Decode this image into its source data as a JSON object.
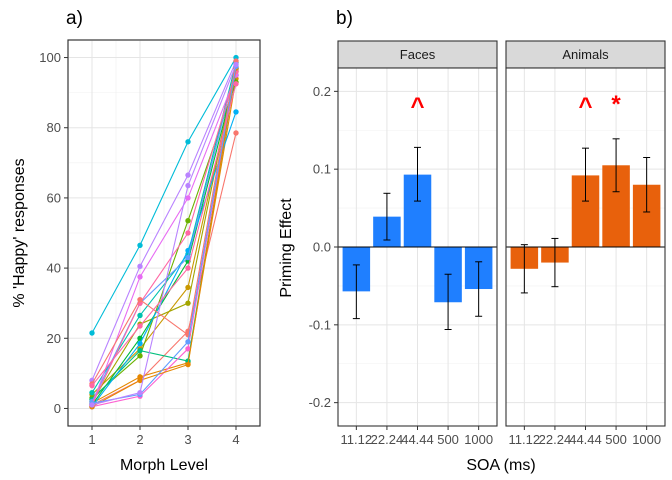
{
  "chart_data": [
    {
      "panel_tag": "a)",
      "type": "line",
      "xlabel": "Morph Level",
      "ylabel": "% 'Happy' responses",
      "x": [
        1,
        2,
        3,
        4
      ],
      "x_ticks": [
        "1",
        "2",
        "3",
        "4"
      ],
      "y_ticks": [
        "0",
        "20",
        "40",
        "60",
        "80",
        "100"
      ],
      "xlim": [
        0.5,
        4.5
      ],
      "ylim": [
        -5,
        105
      ],
      "grid": true,
      "legend": "none",
      "series": [
        {
          "color": "#F8766D",
          "values": [
            1,
            8,
            22,
            78.5
          ]
        },
        {
          "color": "#E58700",
          "values": [
            1.5,
            9,
            13,
            94
          ]
        },
        {
          "color": "#C99800",
          "values": [
            4,
            17,
            34.5,
            96
          ]
        },
        {
          "color": "#A3A500",
          "values": [
            2,
            24,
            30,
            97
          ]
        },
        {
          "color": "#6BB100",
          "values": [
            3,
            15,
            53.5,
            93
          ]
        },
        {
          "color": "#00BA38",
          "values": [
            1,
            20,
            42,
            95
          ]
        },
        {
          "color": "#00BF7D",
          "values": [
            2.5,
            16.5,
            13.5,
            96.5
          ]
        },
        {
          "color": "#00C0AF",
          "values": [
            4.5,
            26.5,
            44,
            98.5
          ]
        },
        {
          "color": "#00BCD8",
          "values": [
            21.5,
            46.5,
            76,
            100
          ]
        },
        {
          "color": "#00B0F6",
          "values": [
            0.5,
            18.5,
            45,
            84.5
          ]
        },
        {
          "color": "#619CFF",
          "values": [
            2,
            30,
            43,
            97
          ]
        },
        {
          "color": "#B983FF",
          "values": [
            8,
            40.5,
            66.5,
            99
          ]
        },
        {
          "color": "#E76BF3",
          "values": [
            1,
            37.5,
            60,
            95
          ]
        },
        {
          "color": "#FD61D1",
          "values": [
            0.5,
            3.5,
            17,
            97
          ]
        },
        {
          "color": "#FF67A4",
          "values": [
            1,
            30,
            50,
            96
          ]
        },
        {
          "color": "#F8766D",
          "values": [
            7,
            31,
            21,
            99
          ]
        },
        {
          "color": "#E58700",
          "values": [
            0.5,
            8,
            12.5,
            97
          ]
        },
        {
          "color": "#619CFF",
          "values": [
            1.5,
            4,
            19,
            97.5
          ]
        },
        {
          "color": "#B983FF",
          "values": [
            1,
            4.5,
            63.5,
            98
          ]
        },
        {
          "color": "#FF67A4",
          "values": [
            6.5,
            23.5,
            40,
            92.5
          ]
        }
      ]
    },
    {
      "panel_tag": "b)",
      "type": "bar",
      "xlabel": "SOA (ms)",
      "ylabel": "Priming Effect",
      "categories": [
        "11.12",
        "22.24",
        "44.44",
        "500",
        "1000"
      ],
      "y_ticks": [
        "-0.2",
        "-0.1",
        "0.0",
        "0.1",
        "0.2"
      ],
      "ylim": [
        -0.23,
        0.23
      ],
      "grid": true,
      "legend": "none",
      "marker_color": "#FF0000",
      "facets": [
        {
          "label": "Faces",
          "color": "#1F7FFF",
          "values": [
            -0.057,
            0.039,
            0.093,
            -0.071,
            -0.054
          ],
          "error_low": [
            -0.092,
            0.009,
            0.059,
            -0.106,
            -0.089
          ],
          "error_high": [
            -0.023,
            0.069,
            0.128,
            -0.035,
            -0.019
          ],
          "markers": [
            {
              "category": "44.44",
              "text": "^"
            }
          ]
        },
        {
          "label": "Animals",
          "color": "#E8610C",
          "values": [
            -0.028,
            -0.02,
            0.092,
            0.105,
            0.08
          ],
          "error_low": [
            -0.059,
            -0.051,
            0.059,
            0.071,
            0.045
          ],
          "error_high": [
            0.003,
            0.011,
            0.127,
            0.139,
            0.115
          ],
          "markers": [
            {
              "category": "44.44",
              "text": "^"
            },
            {
              "category": "500",
              "text": "*"
            }
          ]
        }
      ]
    }
  ]
}
